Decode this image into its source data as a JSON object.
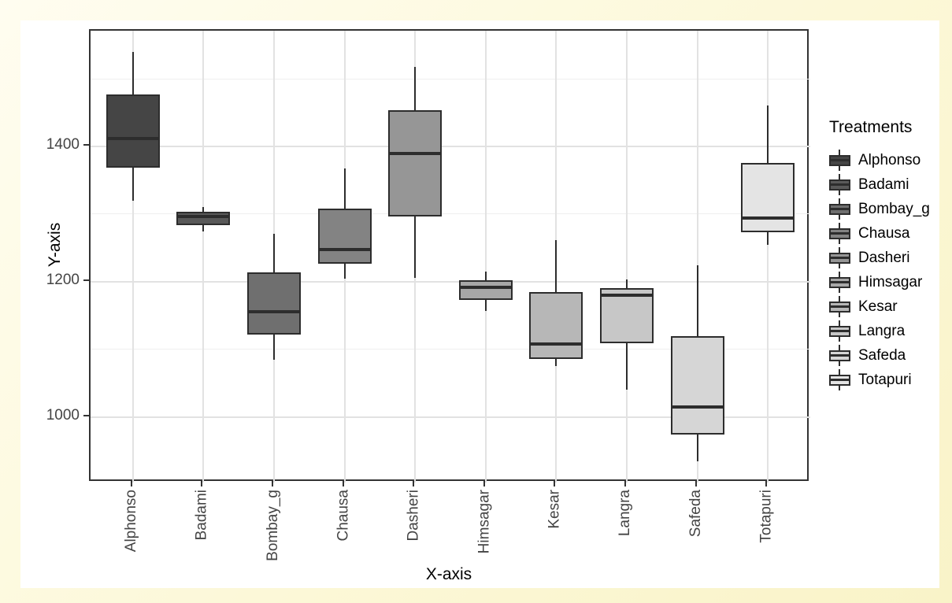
{
  "colors": {
    "page_background": "#FCF8D8",
    "figure_background": "#FFFFFF",
    "panel_border": "#333333",
    "grid_major": "#E2E2E2",
    "grid_minor": "#EFEFEF",
    "box_outline": "#2D2D2D",
    "axis_text": "#444444",
    "title_text": "#000000"
  },
  "chart_data": {
    "type": "boxplot",
    "title": "",
    "xlabel": "X-axis",
    "ylabel": "Y-axis",
    "legend_title": "Treatments",
    "legend_position": "right",
    "grid": true,
    "ylim": [
      903,
      1571
    ],
    "y_ticks": [
      1000,
      1200,
      1400
    ],
    "y_minor_ticks": [
      1100,
      1300,
      1500
    ],
    "categories": [
      "Alphonso",
      "Badami",
      "Bombay_g",
      "Chausa",
      "Dasheri",
      "Himsagar",
      "Kesar",
      "Langra",
      "Safeda",
      "Totapuri"
    ],
    "series": [
      {
        "name": "Alphonso",
        "fill": "#454545",
        "min": 1320,
        "q1": 1368,
        "median": 1412,
        "q3": 1477,
        "max": 1540
      },
      {
        "name": "Badami",
        "fill": "#595959",
        "min": 1274,
        "q1": 1283,
        "median": 1296,
        "q3": 1303,
        "max": 1310
      },
      {
        "name": "Bombay_g",
        "fill": "#6F6F6F",
        "min": 1085,
        "q1": 1122,
        "median": 1155,
        "q3": 1214,
        "max": 1271
      },
      {
        "name": "Chausa",
        "fill": "#838383",
        "min": 1204,
        "q1": 1226,
        "median": 1247,
        "q3": 1308,
        "max": 1367
      },
      {
        "name": "Dasheri",
        "fill": "#969696",
        "min": 1205,
        "q1": 1296,
        "median": 1390,
        "q3": 1453,
        "max": 1517
      },
      {
        "name": "Himsagar",
        "fill": "#A7A7A7",
        "min": 1157,
        "q1": 1173,
        "median": 1192,
        "q3": 1202,
        "max": 1215
      },
      {
        "name": "Kesar",
        "fill": "#B7B7B7",
        "min": 1075,
        "q1": 1086,
        "median": 1108,
        "q3": 1185,
        "max": 1261
      },
      {
        "name": "Langra",
        "fill": "#C7C7C7",
        "min": 1040,
        "q1": 1109,
        "median": 1180,
        "q3": 1190,
        "max": 1203
      },
      {
        "name": "Safeda",
        "fill": "#D6D6D6",
        "min": 934,
        "q1": 974,
        "median": 1015,
        "q3": 1120,
        "max": 1224
      },
      {
        "name": "Totapuri",
        "fill": "#E4E4E4",
        "min": 1254,
        "q1": 1273,
        "median": 1294,
        "q3": 1376,
        "max": 1460
      }
    ]
  }
}
